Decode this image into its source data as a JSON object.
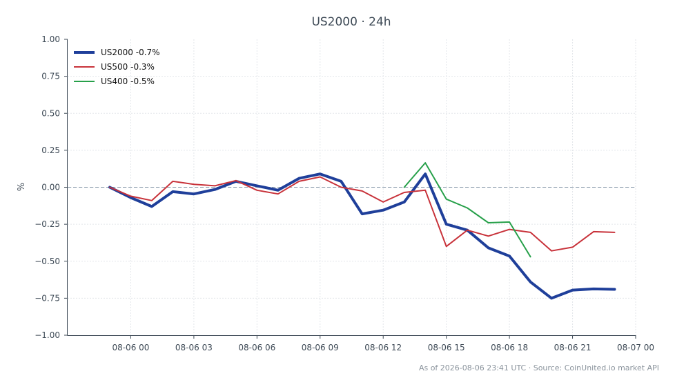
{
  "chart_data": {
    "type": "line",
    "title": "US2000 · 24h",
    "xlabel": "",
    "ylabel": "%",
    "x_ticks": [
      "08-06 00",
      "08-06 03",
      "08-06 06",
      "08-06 09",
      "08-06 12",
      "08-06 15",
      "08-06 18",
      "08-06 21",
      "08-07 00"
    ],
    "x_range": [
      "08-05 21:00",
      "08-07 00:00"
    ],
    "ylim": [
      -1.0,
      1.0
    ],
    "y_ticks": [
      "1.00",
      "0.75",
      "0.50",
      "0.25",
      "0.00",
      "−0.25",
      "−0.50",
      "−0.75",
      "−1.00"
    ],
    "grid": true,
    "legend_position": "top-left",
    "series": [
      {
        "name": "US2000 -0.7%",
        "color": "#1f3f9a",
        "x": [
          "08-05 23:00",
          "08-06 00:00",
          "08-06 01:00",
          "08-06 02:00",
          "08-06 03:00",
          "08-06 04:00",
          "08-06 05:00",
          "08-06 06:00",
          "08-06 07:00",
          "08-06 08:00",
          "08-06 09:00",
          "08-06 10:00",
          "08-06 11:00",
          "08-06 12:00",
          "08-06 13:00",
          "08-06 14:00",
          "08-06 15:00",
          "08-06 16:00",
          "08-06 17:00",
          "08-06 18:00",
          "08-06 19:00",
          "08-06 20:00",
          "08-06 21:00",
          "08-06 22:00",
          "08-06 23:00"
        ],
        "values": [
          0.0,
          -0.07,
          -0.13,
          -0.03,
          -0.045,
          -0.015,
          0.04,
          0.01,
          -0.02,
          0.06,
          0.09,
          0.04,
          -0.18,
          -0.155,
          -0.1,
          0.09,
          -0.25,
          -0.29,
          -0.41,
          -0.465,
          -0.64,
          -0.75,
          -0.695,
          -0.687,
          -0.69
        ]
      },
      {
        "name": "US500 -0.3%",
        "color": "#c8323a",
        "x": [
          "08-05 23:00",
          "08-06 00:00",
          "08-06 01:00",
          "08-06 02:00",
          "08-06 03:00",
          "08-06 04:00",
          "08-06 05:00",
          "08-06 06:00",
          "08-06 07:00",
          "08-06 08:00",
          "08-06 09:00",
          "08-06 10:00",
          "08-06 11:00",
          "08-06 12:00",
          "08-06 13:00",
          "08-06 14:00",
          "08-06 15:00",
          "08-06 16:00",
          "08-06 17:00",
          "08-06 18:00",
          "08-06 19:00",
          "08-06 20:00",
          "08-06 21:00",
          "08-06 22:00",
          "08-06 23:00"
        ],
        "values": [
          0.0,
          -0.06,
          -0.09,
          0.04,
          0.02,
          0.01,
          0.045,
          -0.02,
          -0.045,
          0.04,
          0.07,
          0.0,
          -0.025,
          -0.1,
          -0.035,
          -0.02,
          -0.4,
          -0.29,
          -0.33,
          -0.285,
          -0.305,
          -0.43,
          -0.405,
          -0.3,
          -0.305
        ]
      },
      {
        "name": "US400 -0.5%",
        "color": "#27a04a",
        "x": [
          "08-06 13:00",
          "08-06 14:00",
          "08-06 15:00",
          "08-06 16:00",
          "08-06 17:00",
          "08-06 18:00",
          "08-06 19:00"
        ],
        "values": [
          0.0,
          0.165,
          -0.08,
          -0.14,
          -0.24,
          -0.235,
          -0.47
        ]
      }
    ]
  },
  "footer": "As of 2026-08-06 23:41 UTC · Source: CoinUnited.io market API"
}
